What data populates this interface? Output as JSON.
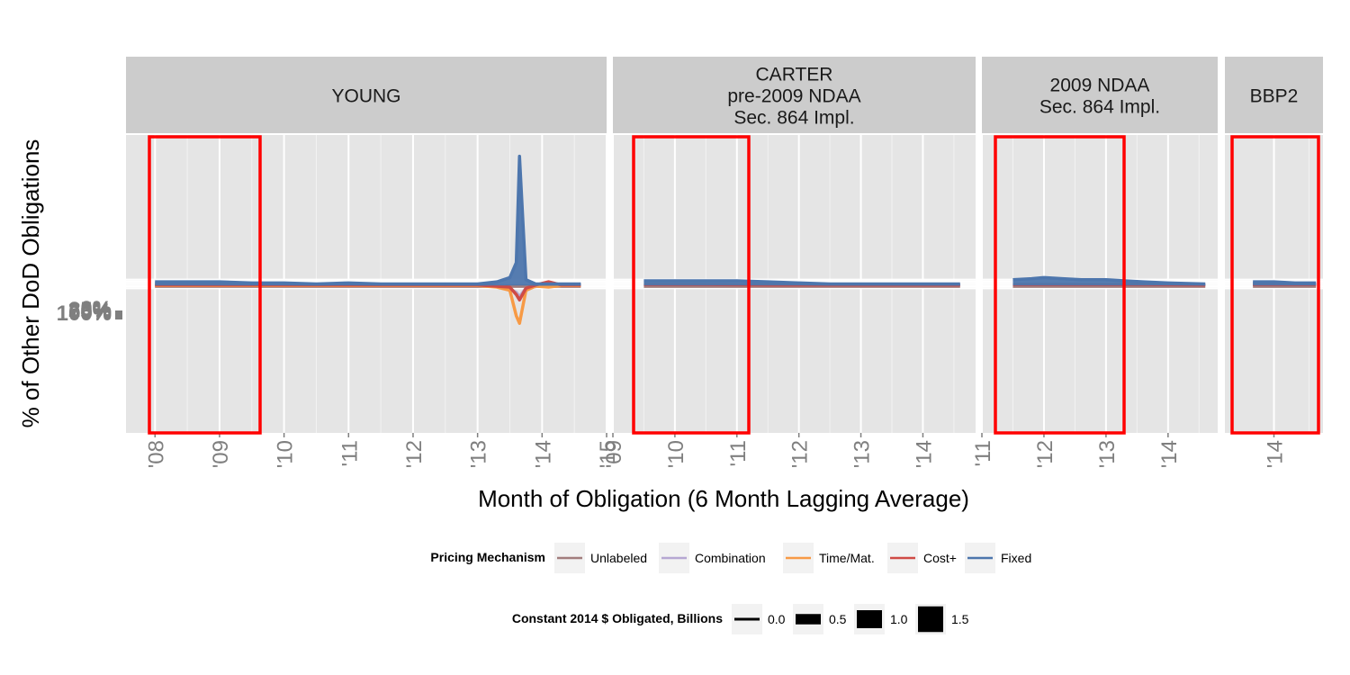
{
  "chart_data": {
    "type": "line",
    "xlabel": "Month of Obligation (6 Month Lagging Average)",
    "ylabel": "% of  Other DoD  Obligations",
    "y_tick_labels": [
      "100%",
      "75%",
      "50%",
      "25%",
      "0%"
    ],
    "grid": true,
    "colors": {
      "Unlabeled": "#a27d7d",
      "Combination": "#b6a7d2",
      "Time/Mat.": "#f79a45",
      "Cost+": "#cf4b45",
      "Fixed": "#4d76ad",
      "highlight": "#ff0000",
      "panel_bg": "#e5e5e5",
      "strip_bg": "#cccccc"
    },
    "panels": [
      {
        "name": "YOUNG",
        "label_lines": [
          "YOUNG"
        ],
        "xticks": [
          "'08",
          "'09",
          "'10",
          "'11",
          "'12",
          "'13",
          "'14",
          "'15"
        ],
        "series": {
          "Fixed": {
            "x": [
              2008.0,
              2008.5,
              2009.0,
              2009.5,
              2010.0,
              2010.5,
              2011.0,
              2011.5,
              2012.0,
              2012.5,
              2013.0,
              2013.3,
              2013.5,
              2013.6,
              2013.65,
              2013.75,
              2013.9,
              2014.1,
              2014.3,
              2014.6
            ],
            "y": [
              1.02,
              1.02,
              1.02,
              1.01,
              1.01,
              1.0,
              1.01,
              1.0,
              1.0,
              1.0,
              1.0,
              1.02,
              1.06,
              1.2,
              2.2,
              1.04,
              1.0,
              1.0,
              1.0,
              1.0
            ]
          },
          "Cost+": {
            "x": [
              2008.0,
              2009.0,
              2010.0,
              2011.0,
              2012.0,
              2013.0,
              2013.5,
              2013.6,
              2013.65,
              2013.75,
              2013.9,
              2014.1,
              2014.3,
              2014.6
            ],
            "y": [
              0.99,
              0.99,
              0.99,
              0.99,
              0.99,
              0.99,
              0.97,
              0.9,
              0.85,
              0.96,
              0.99,
              1.02,
              0.99,
              0.99
            ]
          },
          "Time/Mat.": {
            "x": [
              2008.0,
              2009.0,
              2010.0,
              2011.0,
              2012.0,
              2013.0,
              2013.3,
              2013.5,
              2013.6,
              2013.65,
              2013.75,
              2013.9,
              2014.1,
              2014.3,
              2014.6
            ],
            "y": [
              0.985,
              0.985,
              0.985,
              0.985,
              0.985,
              0.985,
              0.97,
              0.94,
              0.7,
              0.63,
              0.94,
              0.98,
              0.97,
              0.985,
              0.985
            ]
          },
          "Combination": {
            "x": [
              2008.0,
              2010.0,
              2012.0,
              2013.4,
              2013.6,
              2013.65,
              2013.75,
              2014.0,
              2014.6
            ],
            "y": [
              0.985,
              0.985,
              0.985,
              0.985,
              0.92,
              0.88,
              0.96,
              0.985,
              0.985
            ]
          },
          "Unlabeled": {
            "x": [
              2008.0,
              2010.0,
              2012.0,
              2014.0,
              2014.6
            ],
            "y": [
              0.98,
              0.98,
              0.98,
              0.98,
              0.98
            ]
          }
        }
      },
      {
        "name": "CARTER pre-2009 NDAA Sec. 864 Impl.",
        "label_lines": [
          "CARTER",
          "pre-2009 NDAA",
          "Sec. 864 Impl."
        ],
        "xticks": [
          "'09",
          "'10",
          "'11",
          "'12",
          "'13",
          "'14"
        ],
        "series": {
          "Fixed": {
            "x": [
              2009.5,
              2010.0,
              2010.5,
              2011.0,
              2011.5,
              2012.0,
              2012.5,
              2013.0,
              2013.5,
              2014.0,
              2014.6
            ],
            "y": [
              1.03,
              1.03,
              1.03,
              1.03,
              1.02,
              1.01,
              1.0,
              1.0,
              1.0,
              1.0,
              1.0
            ]
          },
          "Cost+": {
            "x": [
              2009.5,
              2010.5,
              2011.5,
              2012.5,
              2013.5,
              2014.6
            ],
            "y": [
              0.995,
              0.995,
              0.99,
              0.99,
              0.99,
              0.99
            ]
          },
          "Unlabeled": {
            "x": [
              2009.5,
              2011.0,
              2012.5,
              2014.6
            ],
            "y": [
              0.98,
              0.98,
              0.98,
              0.98
            ]
          }
        }
      },
      {
        "name": "2009 NDAA Sec. 864 Impl.",
        "label_lines": [
          "2009 NDAA",
          "Sec. 864 Impl."
        ],
        "xticks": [
          "'11",
          "'12",
          "'13",
          "'14"
        ],
        "series": {
          "Fixed": {
            "x": [
              2011.5,
              2011.8,
              2012.0,
              2012.3,
              2012.6,
              2013.0,
              2013.3,
              2013.6,
              2014.0,
              2014.6
            ],
            "y": [
              1.04,
              1.05,
              1.06,
              1.05,
              1.04,
              1.04,
              1.03,
              1.02,
              1.01,
              1.0
            ]
          },
          "Cost+": {
            "x": [
              2011.5,
              2012.5,
              2013.5,
              2014.6
            ],
            "y": [
              0.995,
              0.995,
              0.995,
              0.99
            ]
          },
          "Unlabeled": {
            "x": [
              2011.5,
              2013.0,
              2014.6
            ],
            "y": [
              0.98,
              0.98,
              0.98
            ]
          }
        }
      },
      {
        "name": "BBP2",
        "label_lines": [
          "BBP2"
        ],
        "xticks": [
          "'14"
        ],
        "series": {
          "Fixed": {
            "x": [
              2013.7,
              2014.0,
              2014.3,
              2014.6
            ],
            "y": [
              1.02,
              1.02,
              1.01,
              1.01
            ]
          },
          "Cost+": {
            "x": [
              2013.7,
              2014.6
            ],
            "y": [
              0.995,
              0.995
            ]
          },
          "Unlabeled": {
            "x": [
              2013.7,
              2014.6
            ],
            "y": [
              0.98,
              0.98
            ]
          }
        }
      }
    ]
  },
  "legend": {
    "pricing_title": "Pricing Mechanism",
    "pricing_items": [
      {
        "label": "Unlabeled",
        "color": "#a27d7d"
      },
      {
        "label": "Combination",
        "color": "#b6a7d2"
      },
      {
        "label": "Time/Mat.",
        "color": "#f79a45"
      },
      {
        "label": "Cost+",
        "color": "#cf4b45"
      },
      {
        "label": "Fixed",
        "color": "#4d76ad"
      }
    ],
    "size_title": "Constant 2014 $ Obligated, Billions",
    "size_items": [
      {
        "label": "0.0",
        "value": 0.0
      },
      {
        "label": "0.5",
        "value": 0.5
      },
      {
        "label": "1.0",
        "value": 1.0
      },
      {
        "label": "1.5",
        "value": 1.5
      }
    ]
  }
}
